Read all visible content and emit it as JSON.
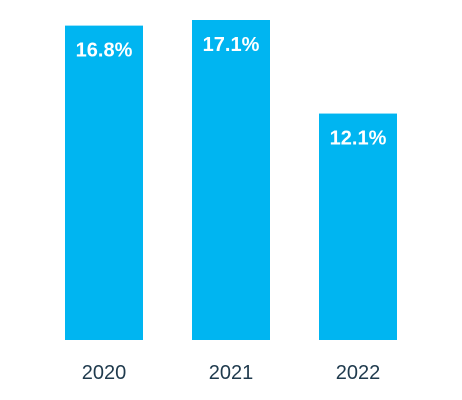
{
  "chart_data": {
    "type": "bar",
    "categories": [
      "2020",
      "2021",
      "2022"
    ],
    "values": [
      16.8,
      17.1,
      12.1
    ],
    "value_labels": [
      "16.8%",
      "17.1%",
      "12.1%"
    ],
    "title": "",
    "xlabel": "",
    "ylabel": "",
    "ylim": [
      0,
      17.1
    ],
    "grid": false,
    "legend": "none",
    "bar_color": "#00b5f1",
    "value_label_color": "#ffffff",
    "tick_label_color": "#1f3a4d"
  }
}
